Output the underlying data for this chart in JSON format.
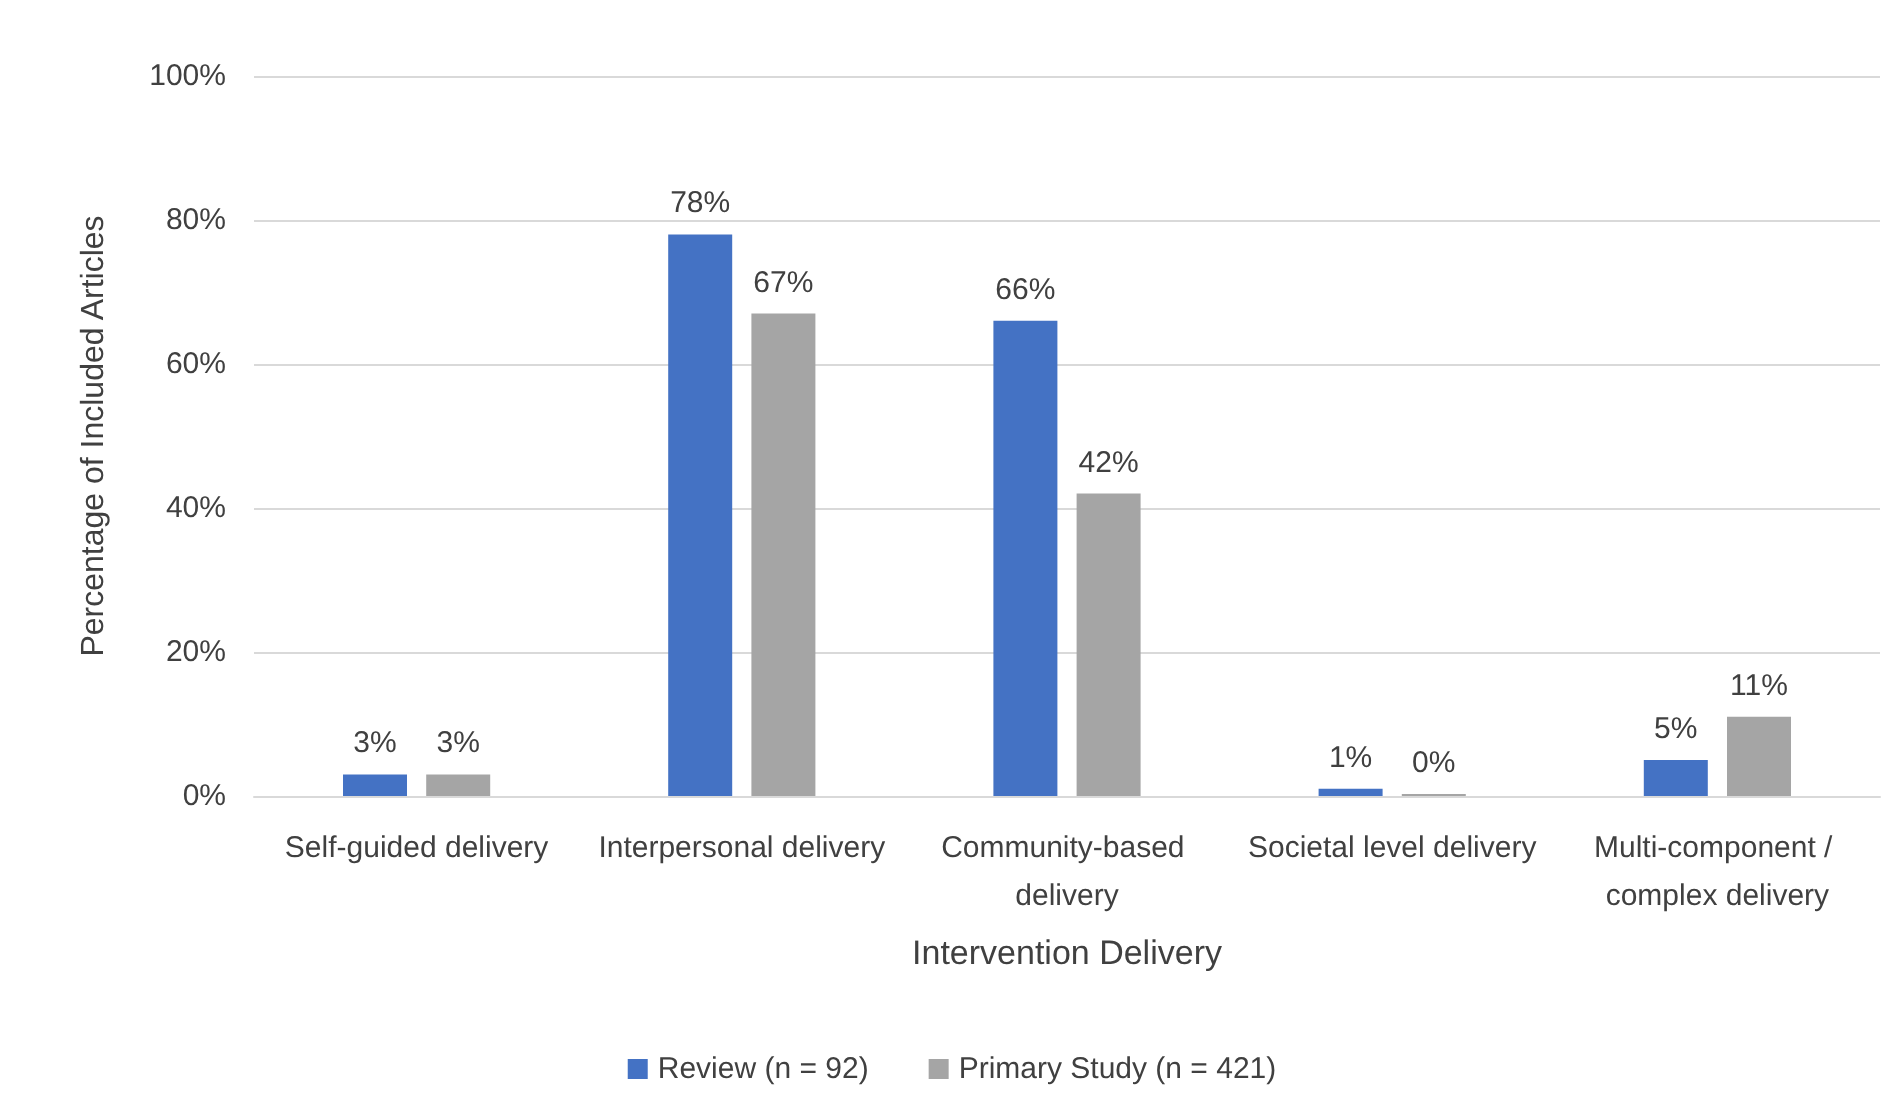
{
  "chart_data": {
    "type": "bar",
    "xlabel": "Intervention Delivery",
    "ylabel": "Percentage of Included Articles",
    "categories": [
      "Self-guided delivery",
      "Interpersonal delivery",
      "Community-based delivery",
      "Societal level delivery",
      "Multi-component / complex delivery"
    ],
    "series": [
      {
        "name": "Review (n = 92)",
        "color": "#4472c4",
        "values": [
          3,
          78,
          66,
          1,
          5
        ],
        "value_labels": [
          "3%",
          "78%",
          "66%",
          "1%",
          "5%"
        ]
      },
      {
        "name": "Primary Study (n = 421)",
        "color": "#a5a5a5",
        "values": [
          3,
          67,
          42,
          0,
          11
        ],
        "value_labels": [
          "3%",
          "67%",
          "42%",
          "0%",
          "11%"
        ]
      }
    ],
    "ylim": [
      0,
      100
    ],
    "yticks": [
      {
        "value": 0,
        "label": "0%"
      },
      {
        "value": 20,
        "label": "20%"
      },
      {
        "value": 40,
        "label": "40%"
      },
      {
        "value": 60,
        "label": "60%"
      },
      {
        "value": 80,
        "label": "80%"
      },
      {
        "value": 100,
        "label": "100%"
      }
    ],
    "grid": "y",
    "legend": "bottom"
  }
}
